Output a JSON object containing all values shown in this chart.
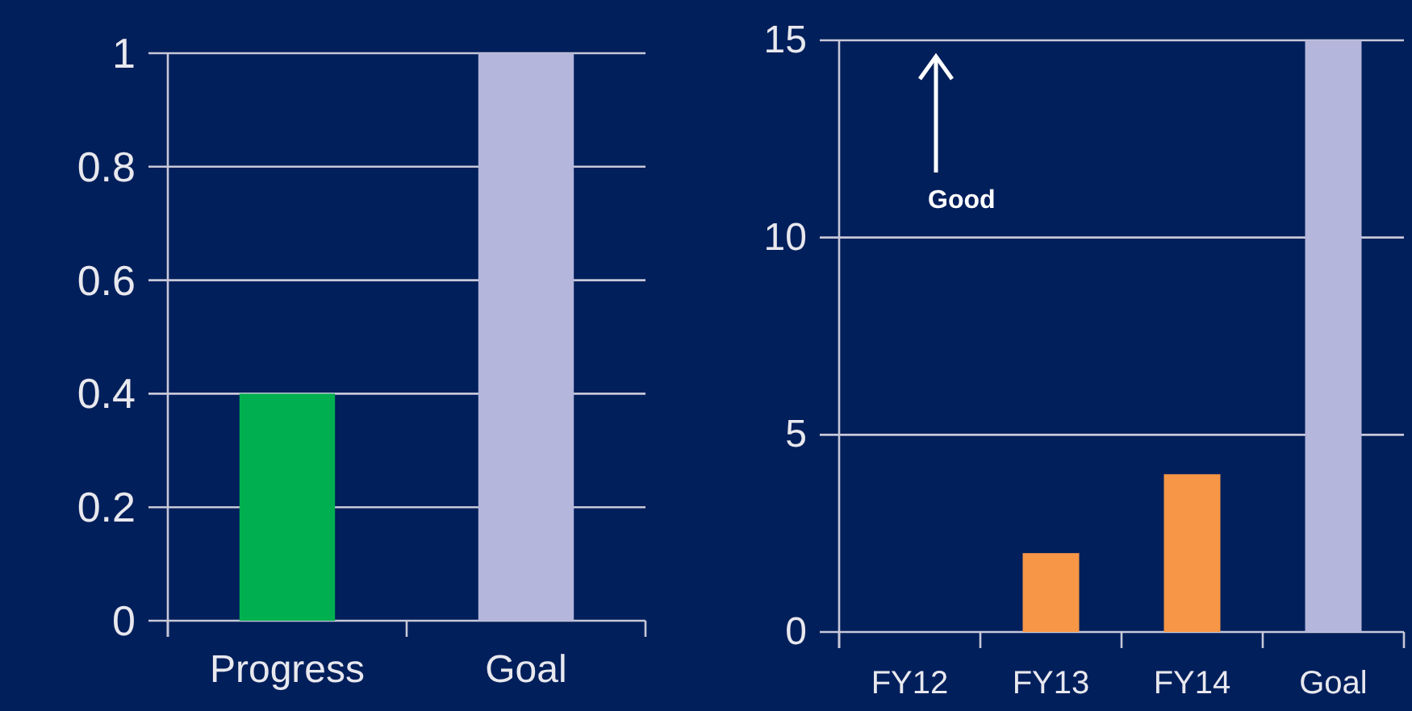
{
  "chart_data": [
    {
      "type": "bar",
      "categories": [
        "Progress",
        "Goal"
      ],
      "values": [
        0.4,
        1
      ],
      "colors": [
        "#00b050",
        "#b4b6dc"
      ],
      "ylim": [
        0,
        1
      ],
      "yticks": [
        0,
        0.2,
        0.4,
        0.6,
        0.8,
        1
      ],
      "grid": "y"
    },
    {
      "type": "bar",
      "categories": [
        "FY12",
        "FY13",
        "FY14",
        "Goal"
      ],
      "values": [
        0,
        2,
        4,
        15
      ],
      "colors": [
        "#f79646",
        "#f79646",
        "#f79646",
        "#b4b6dc"
      ],
      "ylim": [
        0,
        15
      ],
      "yticks": [
        0,
        5,
        10,
        15
      ],
      "grid": "y",
      "annotations": [
        "Good"
      ]
    }
  ]
}
